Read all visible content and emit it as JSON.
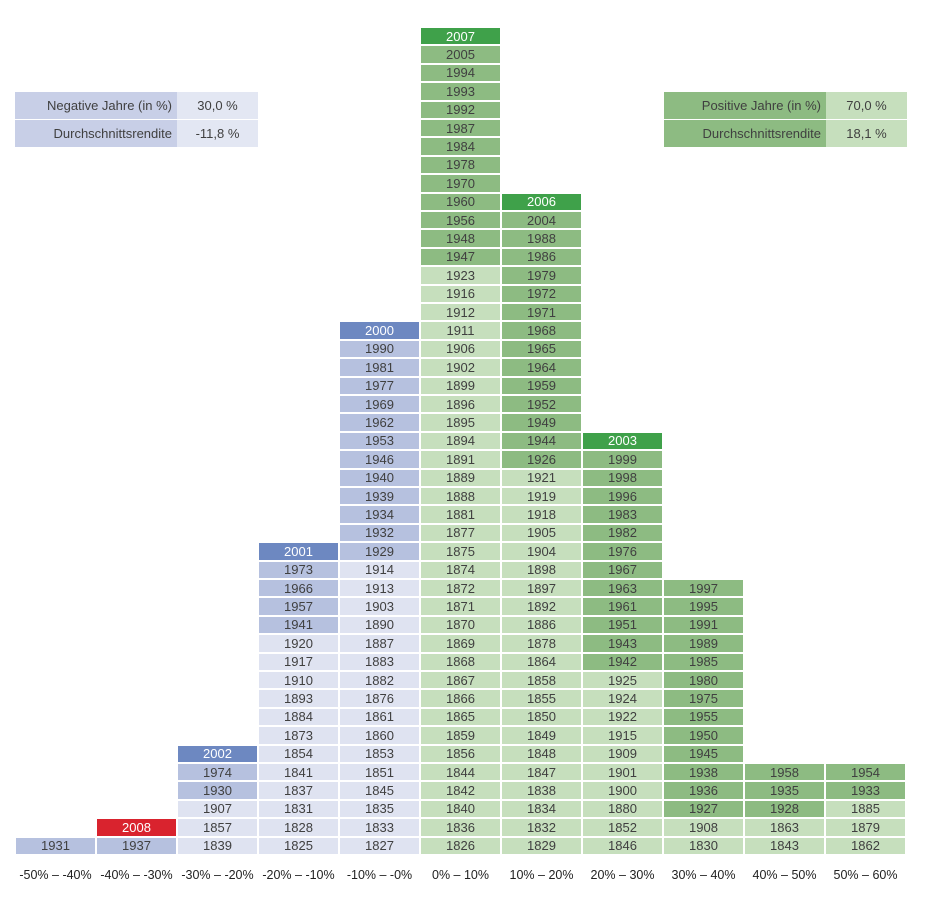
{
  "colors": {
    "neg_dark": "#b6c1df",
    "neg_light": "#dfe3f1",
    "neg_highlight": "#6d88c1",
    "red_highlight": "#d9232e",
    "pos_dark": "#8dbb82",
    "pos_light": "#c6dfbd",
    "pos_highlight": "#3fa14a",
    "summary_neg_label_bg": "#c8cfe7",
    "summary_neg_value_bg": "#e3e7f3",
    "summary_pos_label_bg": "#8dbb82",
    "summary_pos_value_bg": "#c6dfbd"
  },
  "summary": {
    "negative": {
      "rows": [
        {
          "label": "Negative Jahre (in %)",
          "value": "30,0 %"
        },
        {
          "label": "Durchschnittsrendite",
          "value": "-11,8 %"
        }
      ]
    },
    "positive": {
      "rows": [
        {
          "label": "Positive Jahre (in %)",
          "value": "70,0 %"
        },
        {
          "label": "Durchschnittsrendite",
          "value": "18,1 %"
        }
      ]
    }
  },
  "chart_data": {
    "type": "table",
    "categories": [
      "-50% – -40%",
      "-40% – -30%",
      "-30% – -20%",
      "-20% – -10%",
      "-10% – -0%",
      "0% – 10%",
      "10% – 20%",
      "20% – 30%",
      "30% – 40%",
      "40% – 50%",
      "50% – 60%"
    ],
    "columns": [
      {
        "bin": "-50% – -40%",
        "years": [
          "1931"
        ],
        "tones": [
          "d"
        ]
      },
      {
        "bin": "-40% – -30%",
        "years": [
          "1937",
          "2008"
        ],
        "tones": [
          "d",
          "r"
        ]
      },
      {
        "bin": "-30% – -20%",
        "years": [
          "1839",
          "1857",
          "1907",
          "1930",
          "1974",
          "2002"
        ],
        "tones": [
          "l",
          "l",
          "l",
          "d",
          "d",
          "h"
        ]
      },
      {
        "bin": "-20% – -10%",
        "years": [
          "1825",
          "1828",
          "1831",
          "1837",
          "1841",
          "1854",
          "1873",
          "1884",
          "1893",
          "1910",
          "1917",
          "1920",
          "1941",
          "1957",
          "1966",
          "1973",
          "2001"
        ],
        "tones": [
          "l",
          "l",
          "l",
          "l",
          "l",
          "l",
          "l",
          "l",
          "l",
          "l",
          "l",
          "l",
          "d",
          "d",
          "d",
          "d",
          "h"
        ]
      },
      {
        "bin": "-10% – -0%",
        "years": [
          "1827",
          "1833",
          "1835",
          "1845",
          "1851",
          "1853",
          "1860",
          "1861",
          "1876",
          "1882",
          "1883",
          "1887",
          "1890",
          "1903",
          "1913",
          "1914",
          "1929",
          "1932",
          "1934",
          "1939",
          "1940",
          "1946",
          "1953",
          "1962",
          "1969",
          "1977",
          "1981",
          "1990",
          "2000"
        ],
        "tones": [
          "l",
          "l",
          "l",
          "l",
          "l",
          "l",
          "l",
          "l",
          "l",
          "l",
          "l",
          "l",
          "l",
          "l",
          "l",
          "l",
          "d",
          "d",
          "d",
          "d",
          "d",
          "d",
          "d",
          "d",
          "d",
          "d",
          "d",
          "d",
          "h"
        ]
      },
      {
        "bin": "0% – 10%",
        "years": [
          "1826",
          "1836",
          "1840",
          "1842",
          "1844",
          "1856",
          "1859",
          "1865",
          "1866",
          "1867",
          "1868",
          "1869",
          "1870",
          "1871",
          "1872",
          "1874",
          "1875",
          "1877",
          "1881",
          "1888",
          "1889",
          "1891",
          "1894",
          "1895",
          "1896",
          "1899",
          "1902",
          "1906",
          "1911",
          "1912",
          "1916",
          "1923",
          "1947",
          "1948",
          "1956",
          "1960",
          "1970",
          "1978",
          "1984",
          "1987",
          "1992",
          "1993",
          "1994",
          "2005",
          "2007"
        ],
        "tones": [
          "l",
          "l",
          "l",
          "l",
          "l",
          "l",
          "l",
          "l",
          "l",
          "l",
          "l",
          "l",
          "l",
          "l",
          "l",
          "l",
          "l",
          "l",
          "l",
          "l",
          "l",
          "l",
          "l",
          "l",
          "l",
          "l",
          "l",
          "l",
          "l",
          "l",
          "l",
          "l",
          "d",
          "d",
          "d",
          "d",
          "d",
          "d",
          "d",
          "d",
          "d",
          "d",
          "d",
          "d",
          "h"
        ]
      },
      {
        "bin": "10% – 20%",
        "years": [
          "1829",
          "1832",
          "1834",
          "1838",
          "1847",
          "1848",
          "1849",
          "1850",
          "1855",
          "1858",
          "1864",
          "1878",
          "1886",
          "1892",
          "1897",
          "1898",
          "1904",
          "1905",
          "1918",
          "1919",
          "1921",
          "1926",
          "1944",
          "1949",
          "1952",
          "1959",
          "1964",
          "1965",
          "1968",
          "1971",
          "1972",
          "1979",
          "1986",
          "1988",
          "2004",
          "2006"
        ],
        "tones": [
          "l",
          "l",
          "l",
          "l",
          "l",
          "l",
          "l",
          "l",
          "l",
          "l",
          "l",
          "l",
          "l",
          "l",
          "l",
          "l",
          "l",
          "l",
          "l",
          "l",
          "l",
          "d",
          "d",
          "d",
          "d",
          "d",
          "d",
          "d",
          "d",
          "d",
          "d",
          "d",
          "d",
          "d",
          "d",
          "h"
        ]
      },
      {
        "bin": "20% – 30%",
        "years": [
          "1846",
          "1852",
          "1880",
          "1900",
          "1901",
          "1909",
          "1915",
          "1922",
          "1924",
          "1925",
          "1942",
          "1943",
          "1951",
          "1961",
          "1963",
          "1967",
          "1976",
          "1982",
          "1983",
          "1996",
          "1998",
          "1999",
          "2003"
        ],
        "tones": [
          "l",
          "l",
          "l",
          "l",
          "l",
          "l",
          "l",
          "l",
          "l",
          "l",
          "d",
          "d",
          "d",
          "d",
          "d",
          "d",
          "d",
          "d",
          "d",
          "d",
          "d",
          "d",
          "h"
        ]
      },
      {
        "bin": "30% – 40%",
        "years": [
          "1830",
          "1908",
          "1927",
          "1936",
          "1938",
          "1945",
          "1950",
          "1955",
          "1975",
          "1980",
          "1985",
          "1989",
          "1991",
          "1995",
          "1997"
        ],
        "tones": [
          "l",
          "l",
          "d",
          "d",
          "d",
          "d",
          "d",
          "d",
          "d",
          "d",
          "d",
          "d",
          "d",
          "d",
          "d"
        ]
      },
      {
        "bin": "40% – 50%",
        "years": [
          "1843",
          "1863",
          "1928",
          "1935",
          "1958"
        ],
        "tones": [
          "l",
          "l",
          "d",
          "d",
          "d"
        ]
      },
      {
        "bin": "50% – 60%",
        "years": [
          "1862",
          "1879",
          "1885",
          "1933",
          "1954"
        ],
        "tones": [
          "l",
          "l",
          "l",
          "d",
          "d"
        ]
      }
    ]
  }
}
